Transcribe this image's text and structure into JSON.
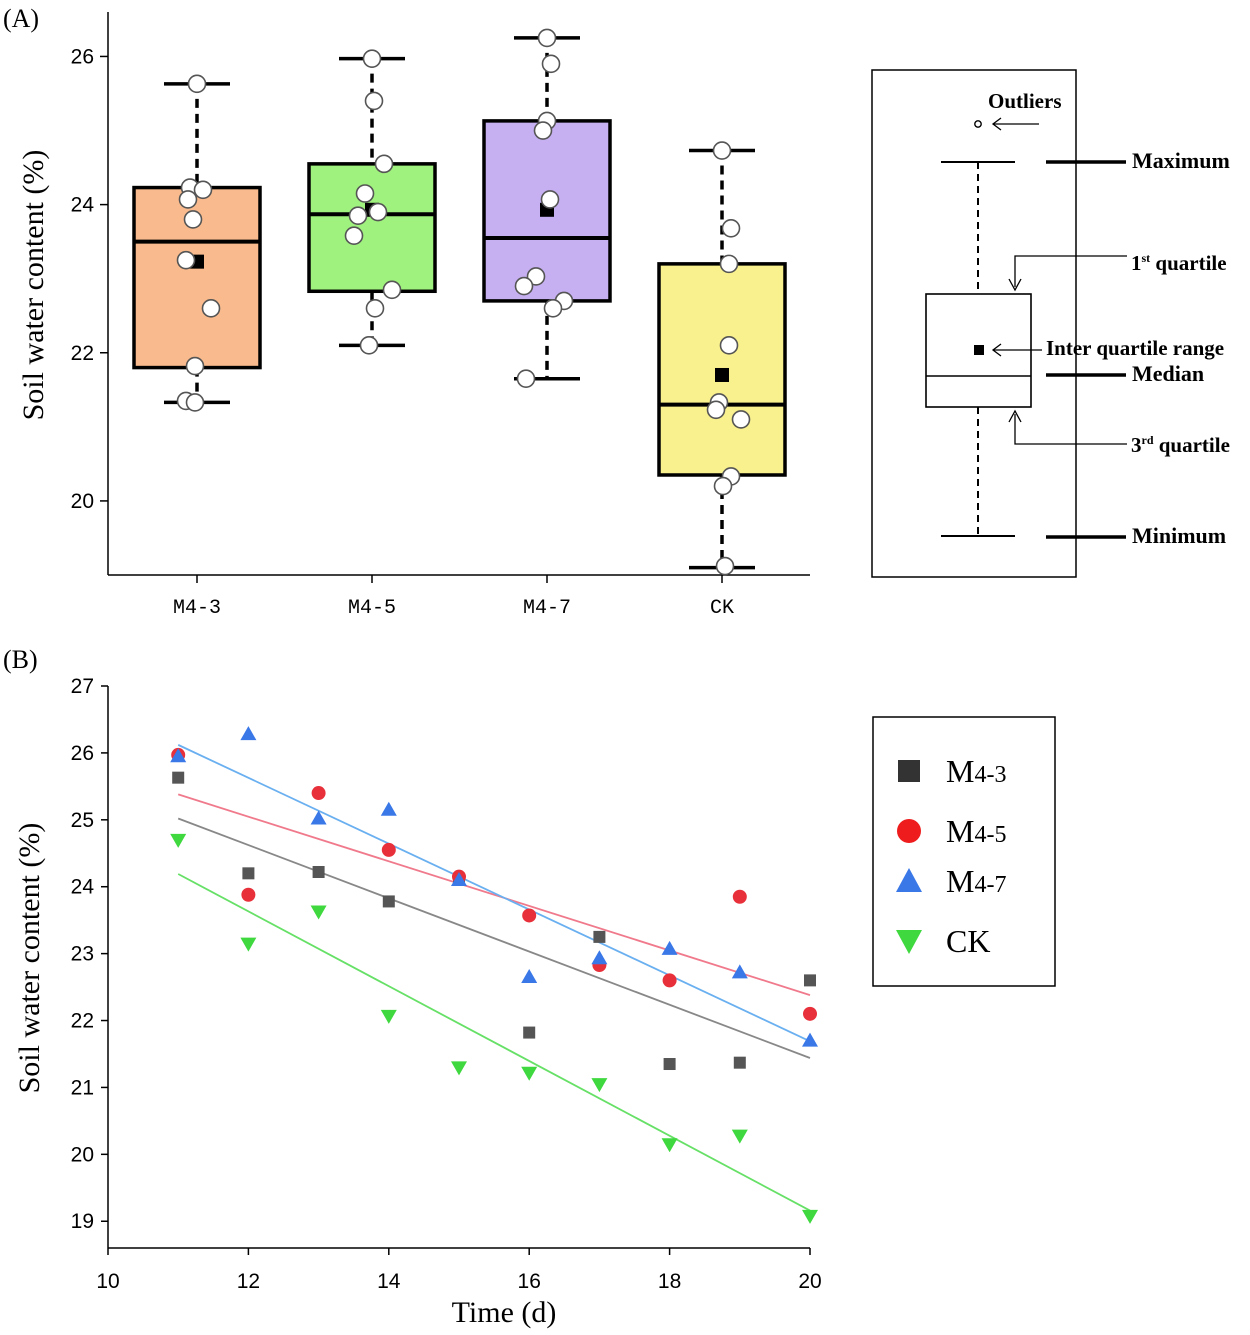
{
  "panel_a_label": "(A)",
  "panel_b_label": "(B)",
  "legend_a": {
    "outliers": "Outliers",
    "maximum": "Maximum",
    "first_quartile": "1",
    "first_quartile_sup": "st",
    "first_quartile_text": " quartile",
    "iqr": "Inter quartile range",
    "median": "Median",
    "third_quartile": "3",
    "third_quartile_sup": "rd",
    "third_quartile_text": " quartile",
    "minimum": "Minimum"
  },
  "legend_b": [
    {
      "name": "M",
      "sub": "4-3",
      "marker": "square",
      "color": "#333333"
    },
    {
      "name": "M",
      "sub": "4-5",
      "marker": "circle",
      "color": "#ee1c1c"
    },
    {
      "name": "M",
      "sub": "4-7",
      "marker": "triangle-up",
      "color": "#3a78e8"
    },
    {
      "name": "CK",
      "sub": "",
      "marker": "triangle-down",
      "color": "#3fd83f"
    }
  ],
  "chart_data": [
    {
      "type": "box",
      "title": "",
      "xlabel": "",
      "ylabel": "Soil water content (%)",
      "ylim": [
        19.0,
        26.6
      ],
      "yticks": [
        "20",
        "22",
        "24",
        "26"
      ],
      "categories": [
        "M4-3",
        "M4-5",
        "M4-7",
        "CK"
      ],
      "box_colors": [
        "#f9bb8d",
        "#a0f27e",
        "#c6b0f2",
        "#f9f08e"
      ],
      "boxes": [
        {
          "min": 21.33,
          "q1": 21.8,
          "median": 23.5,
          "q3": 24.23,
          "max": 25.63,
          "mean": 23.23
        },
        {
          "min": 22.1,
          "q1": 22.83,
          "median": 23.87,
          "q3": 24.55,
          "max": 25.97,
          "mean": 23.93
        },
        {
          "min": 21.65,
          "q1": 22.7,
          "median": 23.55,
          "q3": 25.13,
          "max": 26.25,
          "mean": 23.93
        },
        {
          "min": 19.1,
          "q1": 20.35,
          "median": 21.3,
          "q3": 23.2,
          "max": 24.73,
          "mean": 21.7
        }
      ],
      "points": [
        [
          25.63,
          24.23,
          24.2,
          24.07,
          23.8,
          23.25,
          22.6,
          21.82,
          21.35,
          21.33
        ],
        [
          25.97,
          25.4,
          24.55,
          24.15,
          23.9,
          23.85,
          23.58,
          22.85,
          22.6,
          22.1
        ],
        [
          26.25,
          25.9,
          25.13,
          25.0,
          24.07,
          23.03,
          22.9,
          22.7,
          22.6,
          21.65
        ],
        [
          24.73,
          23.68,
          23.2,
          22.1,
          21.33,
          21.23,
          21.1,
          20.33,
          20.2,
          19.12
        ]
      ]
    },
    {
      "type": "scatter",
      "title": "",
      "xlabel": "Time (d)",
      "ylabel": "Soil water content (%)",
      "xlim": [
        10,
        20
      ],
      "ylim": [
        18.6,
        27
      ],
      "xticks": [
        "10",
        "12",
        "14",
        "16",
        "18",
        "20"
      ],
      "yticks": [
        "19",
        "20",
        "21",
        "22",
        "23",
        "24",
        "25",
        "26",
        "27"
      ],
      "x": [
        11,
        12,
        13,
        14,
        15,
        16,
        17,
        18,
        19,
        20
      ],
      "series": [
        {
          "name": "M4-3",
          "values": [
            25.63,
            24.2,
            24.22,
            23.78,
            24.12,
            21.82,
            23.25,
            21.35,
            21.37,
            22.6
          ],
          "fit": [
            25.02,
            21.44
          ],
          "color": "#555555",
          "line_color": "#888888"
        },
        {
          "name": "M4-5",
          "values": [
            25.97,
            23.88,
            25.4,
            24.55,
            24.15,
            23.57,
            22.83,
            22.6,
            23.85,
            22.1
          ],
          "fit": [
            25.38,
            22.38
          ],
          "color": "#e8303a",
          "line_color": "#f07a8c"
        },
        {
          "name": "M4-7",
          "values": [
            25.95,
            26.28,
            25.02,
            25.15,
            24.1,
            22.65,
            22.93,
            23.07,
            22.72,
            21.7
          ],
          "fit": [
            26.12,
            21.69
          ],
          "color": "#3a78e8",
          "line_color": "#6ab0f0"
        },
        {
          "name": "CK",
          "values": [
            24.7,
            23.15,
            23.63,
            22.07,
            21.3,
            21.22,
            21.05,
            20.15,
            20.28,
            19.08
          ],
          "fit": [
            24.19,
            19.16
          ],
          "color": "#3fd83f",
          "line_color": "#66e066"
        }
      ]
    }
  ]
}
